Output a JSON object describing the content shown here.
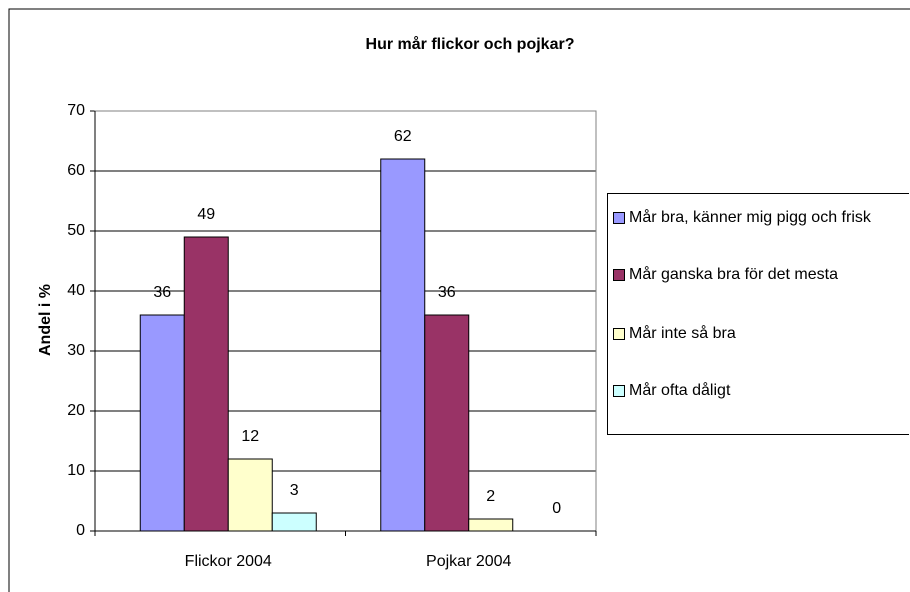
{
  "chart_data": {
    "type": "bar",
    "title": "Hur mår flickor och pojkar?",
    "y_label": "Andel i %",
    "categories": [
      "Flickor 2004",
      "Pojkar 2004"
    ],
    "series": [
      {
        "name": "Mår bra, känner mig pigg och frisk",
        "color": "#9999ff",
        "values": [
          36,
          62
        ]
      },
      {
        "name": "Mår ganska bra för det mesta",
        "color": "#993366",
        "values": [
          49,
          36
        ]
      },
      {
        "name": "Mår inte så bra",
        "color": "#ffffcc",
        "values": [
          12,
          2
        ]
      },
      {
        "name": "Mår ofta dåligt",
        "color": "#ccffff",
        "values": [
          3,
          0
        ]
      }
    ],
    "ylim": [
      0,
      70
    ],
    "yticks": [
      0,
      10,
      20,
      30,
      40,
      50,
      60,
      70
    ],
    "grid": true,
    "legend": "right"
  }
}
